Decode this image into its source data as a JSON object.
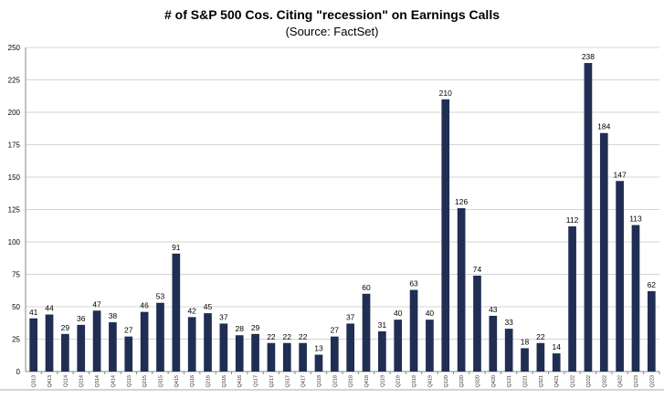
{
  "chart_data": {
    "type": "bar",
    "title": "# of S&P 500 Cos. Citing \"recession\" on Earnings Calls",
    "subtitle": "(Source: FactSet)",
    "xlabel": "",
    "ylabel": "",
    "ylim": [
      0,
      250
    ],
    "yticks": [
      0,
      25,
      50,
      75,
      100,
      125,
      150,
      175,
      200,
      225,
      250
    ],
    "grid": true,
    "bar_color": "#1f2e52",
    "categories": [
      "Q313",
      "Q413",
      "Q114",
      "Q214",
      "Q314",
      "Q414",
      "Q115",
      "Q215",
      "Q315",
      "Q415",
      "Q116",
      "Q216",
      "Q316",
      "Q416",
      "Q117",
      "Q217",
      "Q317",
      "Q417",
      "Q118",
      "Q218",
      "Q318",
      "Q418",
      "Q119",
      "Q219",
      "Q319",
      "Q419",
      "Q120",
      "Q220",
      "Q320",
      "Q420",
      "Q121",
      "Q221",
      "Q321",
      "Q421",
      "Q122",
      "Q222",
      "Q322",
      "Q422",
      "Q123",
      "Q223"
    ],
    "values": [
      41,
      44,
      29,
      36,
      47,
      38,
      27,
      46,
      53,
      91,
      42,
      45,
      37,
      28,
      29,
      22,
      22,
      22,
      13,
      27,
      37,
      60,
      31,
      40,
      63,
      40,
      210,
      126,
      74,
      43,
      33,
      18,
      22,
      14,
      112,
      238,
      184,
      147,
      113,
      62
    ]
  }
}
